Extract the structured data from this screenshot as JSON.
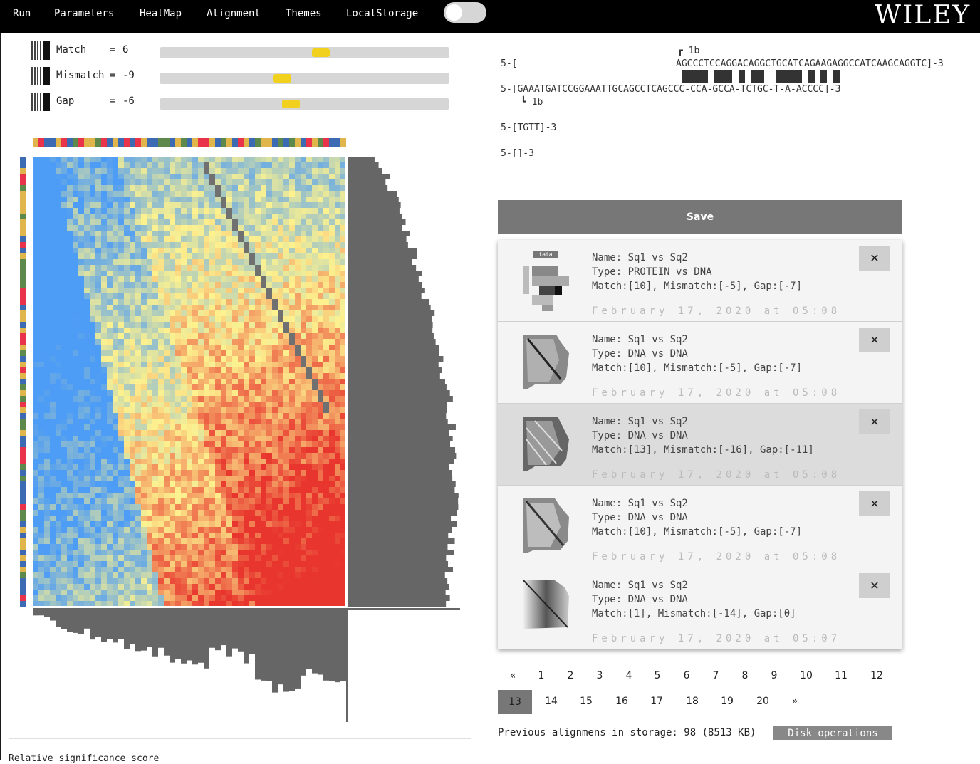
{
  "menu": {
    "items": [
      "Run",
      "Parameters",
      "HeatMap",
      "Alignment",
      "Themes",
      "LocalStorage"
    ],
    "logo": "WILEY",
    "toggle_on": false
  },
  "parameters": [
    {
      "label": "Match",
      "eq": "=",
      "value": "6",
      "slider_fraction": 0.56
    },
    {
      "label": "Mismatch",
      "eq": "=",
      "value": "-9",
      "slider_fraction": 0.42
    },
    {
      "label": "Gap",
      "eq": "=",
      "value": "-6",
      "slider_fraction": 0.45
    }
  ],
  "colors": {
    "nucleotide_palette": [
      "#3d6bb3",
      "#e0b64c",
      "#e8334a",
      "#5d8a4c"
    ],
    "heat_low": "#4d9cf5",
    "heat_mid": "#fdf28f",
    "heat_high": "#e8362e",
    "diagonal": "#707070",
    "histogram": "#666666"
  },
  "alignment": {
    "line1_prefix": "5-[",
    "line1_sequence": "AGCCCTCCAGGACAGGCTGCATCAGAAGAGGCCATCAAGCAGGTC]-3",
    "marker_top": "┏ 1b",
    "line2": "5-[GAAATGATCCGGAAATTGCAGCCTCAGCCC-CCA-GCCA-TCTGC-T-A-ACCCC]-3",
    "marker_bottom": "┗ 1b",
    "line3": "5-[TGTT]-3",
    "line4": "5-[]-3"
  },
  "save_label": "Save",
  "records": [
    {
      "name": "Name: Sq1 vs Sq2",
      "type": "Type: PROTEIN vs DNA",
      "params": "Match:[10], Mismatch:[-5], Gap:[-7]",
      "date": "February 17, 2020 at 05:08",
      "thumb_label": "tata",
      "close": "✕",
      "selected": false
    },
    {
      "name": "Name: Sq1 vs Sq2",
      "type": "Type: DNA vs DNA",
      "params": "Match:[10], Mismatch:[-5], Gap:[-7]",
      "date": "February 17, 2020 at 05:08",
      "close": "✕",
      "selected": false
    },
    {
      "name": "Name: Sq1 vs Sq2",
      "type": "Type: DNA vs DNA",
      "params": "Match:[13], Mismatch:[-16], Gap:[-11]",
      "date": "February 17, 2020 at 05:08",
      "close": "✕",
      "selected": true
    },
    {
      "name": "Name: Sq1 vs Sq2",
      "type": "Type: DNA vs DNA",
      "params": "Match:[10], Mismatch:[-5], Gap:[-7]",
      "date": "February 17, 2020 at 05:08",
      "close": "✕",
      "selected": false
    },
    {
      "name": "Name: Sq1 vs Sq2",
      "type": "Type: DNA vs DNA",
      "params": "Match:[1], Mismatch:[-14], Gap:[0]",
      "date": "February 17, 2020 at 05:07",
      "close": "✕",
      "selected": false
    }
  ],
  "pagination": {
    "row1": [
      "«",
      "1",
      "2",
      "3",
      "4",
      "5",
      "6",
      "7",
      "8",
      "9",
      "10",
      "11",
      "12"
    ],
    "active": "13",
    "row2": [
      "14",
      "15",
      "16",
      "17",
      "18",
      "19",
      "20",
      "»"
    ]
  },
  "storage_text": "Previous alignmens in storage: 98 (8513 KB)",
  "disk_label": "Disk operations",
  "caption": "Relative significance score"
}
